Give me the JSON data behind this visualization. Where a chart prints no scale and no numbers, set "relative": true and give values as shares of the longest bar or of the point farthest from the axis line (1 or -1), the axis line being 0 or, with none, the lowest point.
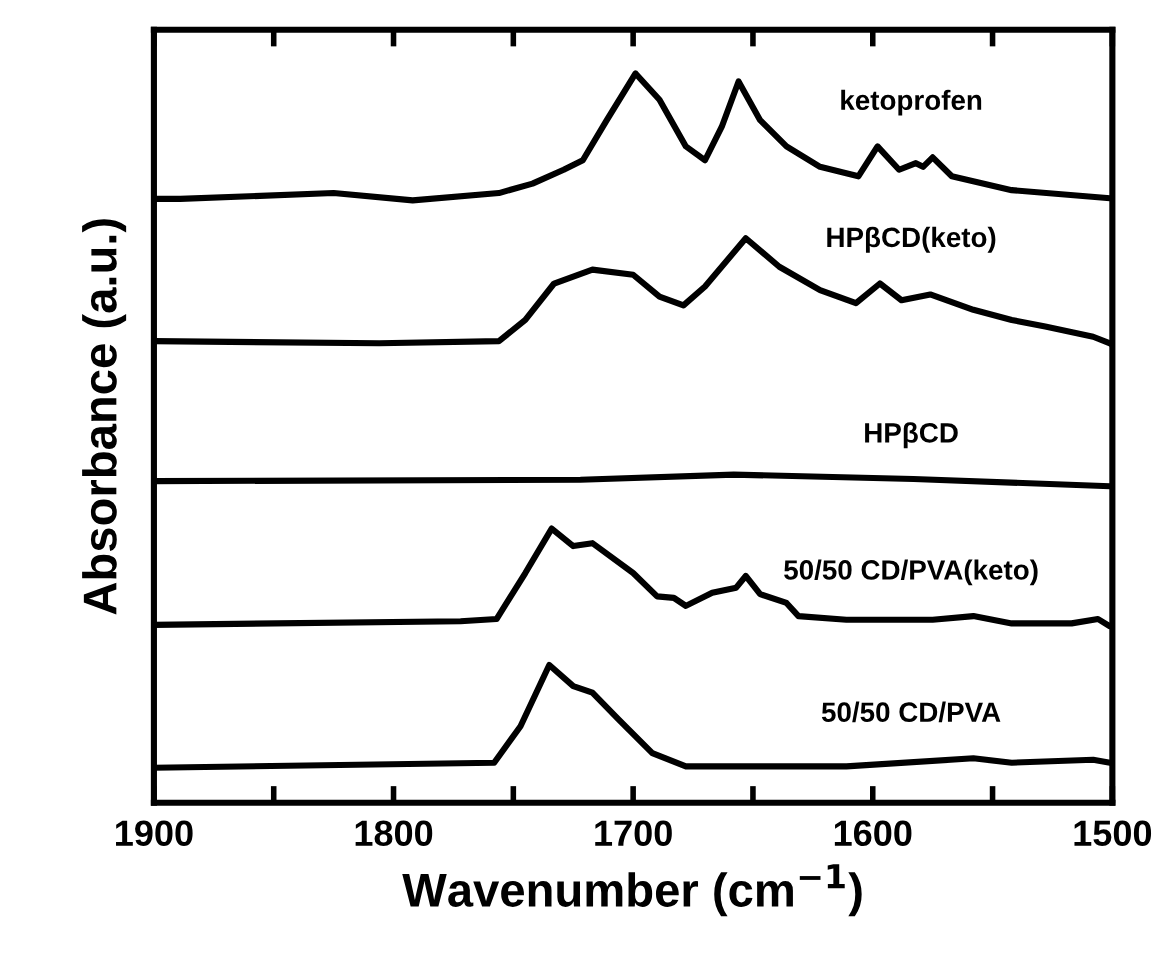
{
  "chart_data": {
    "type": "line",
    "relative": true,
    "xlabel": "Wavenumber (cm$^{−1}$)",
    "ylabel": "Absorbance (a.u.)",
    "xlim": [
      1900,
      1500
    ],
    "xticks": [
      1900,
      {
        "value": 1850,
        "label": null
      },
      1800,
      {
        "value": 1750,
        "label": null
      },
      1700,
      {
        "value": 1650,
        "label": null
      },
      1600,
      {
        "value": 1550,
        "label": null
      },
      1500
    ],
    "grid": false,
    "legend": false,
    "marker": "none",
    "line_style": "solid",
    "series": [
      {
        "name": "ketoprofen",
        "color": "#000000",
        "x": [
          1900,
          1889,
          1825,
          1792,
          1756,
          1742,
          1729,
          1721,
          1711,
          1699,
          1689,
          1678,
          1670,
          1663,
          1656,
          1647,
          1636,
          1622,
          1606,
          1598,
          1589,
          1582,
          1579,
          1575,
          1567,
          1542,
          1501,
          1500
        ],
        "values": [
          0.828,
          0.828,
          0.836,
          0.826,
          0.836,
          0.849,
          0.868,
          0.881,
          0.936,
          1.0,
          0.964,
          0.9,
          0.881,
          0.927,
          0.989,
          0.936,
          0.9,
          0.872,
          0.859,
          0.9,
          0.868,
          0.877,
          0.872,
          0.885,
          0.859,
          0.84,
          0.829,
          0.829
        ]
      },
      {
        "name": "HPβCD(keto)",
        "color": "#000000",
        "x": [
          1900,
          1806,
          1756,
          1745,
          1733,
          1717,
          1700,
          1689,
          1679,
          1670,
          1653,
          1639,
          1622,
          1607,
          1597,
          1588,
          1576,
          1558,
          1542,
          1528,
          1508,
          1501,
          1500
        ],
        "values": [
          0.633,
          0.63,
          0.633,
          0.662,
          0.712,
          0.731,
          0.724,
          0.694,
          0.682,
          0.708,
          0.774,
          0.735,
          0.703,
          0.685,
          0.712,
          0.689,
          0.697,
          0.676,
          0.662,
          0.653,
          0.639,
          0.63,
          0.628
        ]
      },
      {
        "name": "HPβCD",
        "color": "#000000",
        "x": [
          1900,
          1722,
          1658,
          1583,
          1501,
          1500
        ],
        "values": [
          0.441,
          0.443,
          0.45,
          0.444,
          0.434,
          0.434
        ]
      },
      {
        "name": "50/50 CD/PVA(keto)",
        "color": "#000000",
        "x": [
          1900,
          1772,
          1757,
          1745,
          1734,
          1725,
          1717,
          1700,
          1690,
          1683,
          1678,
          1667,
          1657,
          1653,
          1647,
          1636,
          1631,
          1611,
          1575,
          1558,
          1542,
          1517,
          1506,
          1501,
          1500
        ],
        "values": [
          0.244,
          0.249,
          0.252,
          0.315,
          0.376,
          0.352,
          0.356,
          0.315,
          0.283,
          0.281,
          0.27,
          0.288,
          0.295,
          0.311,
          0.286,
          0.274,
          0.256,
          0.251,
          0.251,
          0.256,
          0.246,
          0.246,
          0.252,
          0.242,
          0.242
        ]
      },
      {
        "name": "50/50 CD/PVA",
        "color": "#000000",
        "x": [
          1900,
          1758,
          1747,
          1735,
          1725,
          1717,
          1706,
          1692,
          1678,
          1611,
          1558,
          1542,
          1508,
          1501,
          1500
        ],
        "values": [
          0.048,
          0.055,
          0.105,
          0.189,
          0.16,
          0.151,
          0.114,
          0.068,
          0.05,
          0.05,
          0.061,
          0.055,
          0.059,
          0.055,
          0.055
        ]
      }
    ]
  }
}
